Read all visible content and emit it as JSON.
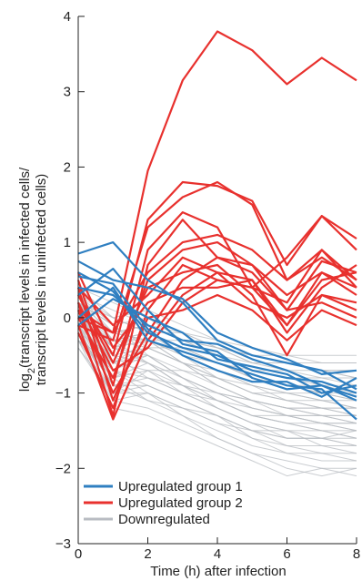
{
  "chart_data": {
    "type": "line",
    "xlabel": "Time (h) after infection",
    "ylabel_lines": [
      "log|2|(transcript levels in infected cells/",
      "transcript levels in uninfected cells)"
    ],
    "xlim": [
      0,
      8
    ],
    "ylim": [
      -3,
      4
    ],
    "x_ticks": [
      "0",
      "2",
      "4",
      "6",
      "8"
    ],
    "y_ticks": [
      "4",
      "3",
      "2",
      "1",
      "0",
      "−1",
      "−2",
      "−3"
    ],
    "x": [
      0,
      1,
      2,
      3,
      4,
      5,
      6,
      7,
      8
    ],
    "grid": false,
    "legend_position": "bottom-left",
    "colors": {
      "upregulated_group_1": "#2f7fc1",
      "upregulated_group_2": "#e8312e",
      "downregulated": "#b8bcc2"
    },
    "legend": [
      {
        "label": "Upregulated group 1",
        "color": "#2f7fc1"
      },
      {
        "label": "Upregulated group 2",
        "color": "#e8312e"
      },
      {
        "label": "Downregulated",
        "color": "#b8bcc2"
      }
    ],
    "series_groups": [
      {
        "group": "Downregulated",
        "color": "#b8bcc2",
        "series": [
          [
            -0.3,
            -0.6,
            -0.4,
            -0.6,
            -0.8,
            -1.0,
            -1.0,
            -1.0,
            -1.1
          ],
          [
            0.3,
            -0.2,
            -0.1,
            -0.3,
            -0.5,
            -0.7,
            -0.8,
            -0.8,
            -0.9
          ],
          [
            0.1,
            -0.4,
            -0.3,
            -0.5,
            -0.7,
            -0.9,
            -1.0,
            -1.1,
            -1.2
          ],
          [
            0.2,
            0.0,
            0.1,
            -0.1,
            -0.3,
            -0.5,
            -0.6,
            -0.7,
            -0.7
          ],
          [
            -0.1,
            -0.7,
            -0.5,
            -0.8,
            -1.0,
            -1.2,
            -1.3,
            -1.3,
            -1.4
          ],
          [
            0.4,
            0.2,
            0.0,
            -0.2,
            -0.4,
            -0.6,
            -0.6,
            -0.7,
            -0.8
          ],
          [
            -0.2,
            -0.9,
            -0.8,
            -1.0,
            -1.2,
            -1.4,
            -1.5,
            -1.5,
            -1.6
          ],
          [
            0.0,
            -0.5,
            -0.6,
            -0.9,
            -1.1,
            -1.3,
            -1.4,
            -1.5,
            -1.5
          ],
          [
            0.2,
            -0.3,
            -0.2,
            -0.4,
            -0.6,
            -0.8,
            -0.9,
            -1.0,
            -1.0
          ],
          [
            -0.3,
            -1.0,
            -1.0,
            -1.2,
            -1.4,
            -1.6,
            -1.7,
            -1.7,
            -1.8
          ],
          [
            0.1,
            -0.2,
            -0.3,
            -0.3,
            -0.4,
            -0.6,
            -0.7,
            -0.7,
            -0.8
          ],
          [
            -0.1,
            -0.6,
            -0.7,
            -0.7,
            -0.9,
            -1.1,
            -1.2,
            -1.2,
            -1.3
          ],
          [
            0.3,
            0.1,
            -0.1,
            -0.3,
            -0.4,
            -0.5,
            -0.5,
            -0.6,
            -0.6
          ],
          [
            -0.2,
            -0.8,
            -1.1,
            -1.3,
            -1.5,
            -1.7,
            -1.8,
            -1.8,
            -1.9
          ],
          [
            0.0,
            -0.4,
            -0.2,
            -0.5,
            -0.8,
            -1.0,
            -1.1,
            -1.2,
            -1.2
          ],
          [
            0.2,
            -0.1,
            -0.4,
            -0.6,
            -0.9,
            -1.1,
            -1.2,
            -1.3,
            -1.4
          ],
          [
            -0.4,
            -1.1,
            -1.2,
            -1.4,
            -1.6,
            -1.8,
            -1.9,
            -2.0,
            -2.0
          ],
          [
            0.1,
            -0.5,
            -0.4,
            -0.4,
            -0.6,
            -0.7,
            -0.8,
            -0.9,
            -0.9
          ],
          [
            -0.1,
            -0.3,
            -0.6,
            -0.8,
            -1.0,
            -1.1,
            -1.3,
            -1.3,
            -1.3
          ],
          [
            0.3,
            -0.1,
            0.0,
            -0.3,
            -0.5,
            -0.7,
            -0.7,
            -0.8,
            -0.8
          ],
          [
            -0.2,
            -0.9,
            -0.9,
            -1.1,
            -1.3,
            -1.5,
            -1.6,
            -1.6,
            -1.7
          ],
          [
            0.0,
            -0.7,
            -0.8,
            -0.9,
            -1.0,
            -1.2,
            -1.3,
            -1.4,
            -1.5
          ],
          [
            0.4,
            0.0,
            -0.2,
            -0.2,
            -0.3,
            -0.4,
            -0.5,
            -0.5,
            -0.5
          ],
          [
            -0.3,
            -1.2,
            -1.3,
            -1.5,
            -1.7,
            -1.9,
            -2.1,
            -2.0,
            -2.1
          ],
          [
            0.1,
            -0.4,
            -0.5,
            -0.7,
            -0.8,
            -0.9,
            -1.0,
            -1.1,
            -1.1
          ],
          [
            -0.1,
            -0.8,
            -0.6,
            -0.9,
            -1.1,
            -1.3,
            -1.3,
            -1.4,
            -1.4
          ],
          [
            0.2,
            -0.2,
            -0.3,
            -0.5,
            -0.6,
            -0.8,
            -0.9,
            -0.9,
            -1.0
          ],
          [
            -0.3,
            -0.7,
            -1.0,
            -1.2,
            -1.3,
            -1.5,
            -1.5,
            -1.6,
            -1.6
          ],
          [
            0.0,
            -0.6,
            -0.3,
            -0.6,
            -0.9,
            -1.1,
            -1.2,
            -1.3,
            -1.3
          ],
          [
            0.2,
            -0.1,
            -0.5,
            -0.8,
            -1.1,
            -1.3,
            -1.4,
            -1.5,
            -1.6
          ],
          [
            -0.2,
            -1.0,
            -0.7,
            -1.0,
            -1.2,
            -1.4,
            -1.5,
            -1.7,
            -1.7
          ],
          [
            0.1,
            -0.3,
            -0.4,
            -0.6,
            -0.7,
            -0.9,
            -1.1,
            -1.1,
            -1.2
          ],
          [
            -0.1,
            -0.9,
            -1.1,
            -1.2,
            -1.4,
            -1.5,
            -1.6,
            -1.6,
            -1.5
          ],
          [
            0.3,
            0.0,
            -0.2,
            -0.4,
            -0.6,
            -0.8,
            -0.9,
            -1.0,
            -1.1
          ],
          [
            -0.4,
            -1.0,
            -0.9,
            -1.1,
            -1.3,
            -1.6,
            -1.8,
            -1.9,
            -1.9
          ],
          [
            0.0,
            -0.2,
            -0.1,
            -0.2,
            -0.4,
            -0.5,
            -0.6,
            -0.7,
            -0.7
          ],
          [
            0.1,
            -0.6,
            -0.5,
            -0.8,
            -1.0,
            -1.1,
            -1.2,
            -1.2,
            -1.3
          ],
          [
            -0.2,
            -0.5,
            -0.8,
            -1.0,
            -1.1,
            -1.3,
            -1.4,
            -1.4,
            -1.5
          ],
          [
            0.2,
            -0.4,
            -0.6,
            -0.9,
            -1.2,
            -1.4,
            -1.6,
            -1.6,
            -1.7
          ],
          [
            -0.1,
            -1.1,
            -1.0,
            -1.3,
            -1.6,
            -1.8,
            -2.0,
            -2.1,
            -2.0
          ],
          [
            0.0,
            -0.3,
            -0.2,
            -0.4,
            -0.5,
            -0.6,
            -0.6,
            -0.6,
            -0.6
          ],
          [
            0.3,
            -0.3,
            -0.3,
            -0.6,
            -0.8,
            -1.0,
            -1.1,
            -1.2,
            -1.2
          ],
          [
            -0.3,
            -0.8,
            -0.7,
            -0.9,
            -1.1,
            -1.2,
            -1.3,
            -1.4,
            -1.4
          ],
          [
            0.1,
            -0.7,
            -0.9,
            -1.1,
            -1.3,
            -1.5,
            -1.7,
            -1.8,
            -1.8
          ]
        ]
      },
      {
        "group": "Upregulated group 2",
        "color": "#e8312e",
        "series": [
          [
            0.1,
            -0.2,
            1.95,
            3.15,
            3.8,
            3.55,
            3.1,
            3.45,
            3.15
          ],
          [
            0.3,
            -0.5,
            1.3,
            1.8,
            1.75,
            1.55,
            0.7,
            1.35,
            1.05
          ],
          [
            -0.1,
            -0.3,
            1.2,
            1.6,
            1.8,
            1.5,
            0.5,
            0.9,
            0.4
          ],
          [
            0.5,
            -0.9,
            0.9,
            1.4,
            1.2,
            0.4,
            0.8,
            1.35,
            0.9
          ],
          [
            0.2,
            -1.3,
            0.7,
            1.3,
            0.8,
            0.7,
            0.1,
            0.75,
            0.6
          ],
          [
            0.0,
            -0.8,
            0.5,
            0.9,
            1.0,
            0.7,
            0.3,
            0.6,
            0.3
          ],
          [
            0.4,
            -0.1,
            0.3,
            0.8,
            0.6,
            0.5,
            -0.1,
            0.5,
            0.6
          ],
          [
            -0.2,
            -1.2,
            0.1,
            0.7,
            0.5,
            0.4,
            0.2,
            0.9,
            0.5
          ],
          [
            0.3,
            -0.6,
            0.4,
            0.6,
            0.7,
            0.3,
            -0.5,
            0.3,
            0.2
          ],
          [
            0.1,
            -1.0,
            -0.2,
            0.5,
            0.8,
            0.6,
            0.1,
            0.2,
            0.0
          ],
          [
            0.6,
            -0.4,
            0.2,
            0.4,
            0.4,
            0.5,
            -0.2,
            0.4,
            0.7
          ],
          [
            -0.1,
            -1.35,
            -0.3,
            0.3,
            0.6,
            0.2,
            0.0,
            0.3,
            0.1
          ],
          [
            0.2,
            -0.7,
            -0.4,
            0.2,
            0.5,
            0.4,
            -0.1,
            0.6,
            0.4
          ],
          [
            0.4,
            -1.1,
            0.0,
            0.1,
            0.3,
            0.1,
            -0.3,
            0.1,
            -0.1
          ],
          [
            0.0,
            -0.2,
            0.6,
            1.0,
            1.1,
            0.9,
            0.5,
            0.8,
            0.5
          ]
        ]
      },
      {
        "group": "Upregulated group 1",
        "color": "#2f7fc1",
        "series": [
          [
            0.85,
            1.0,
            0.5,
            0.2,
            -0.3,
            -0.5,
            -0.6,
            -0.7,
            -0.95
          ],
          [
            0.75,
            0.5,
            0.4,
            0.25,
            -0.2,
            -0.4,
            -0.55,
            -0.75,
            -0.7
          ],
          [
            0.6,
            0.35,
            -0.2,
            -0.4,
            -0.5,
            -0.7,
            -0.8,
            -0.85,
            -1.0
          ],
          [
            0.4,
            0.3,
            -0.1,
            -0.3,
            -0.35,
            -0.55,
            -0.7,
            -0.9,
            -1.1
          ],
          [
            0.0,
            0.4,
            -0.3,
            -0.45,
            -0.6,
            -0.75,
            -0.9,
            -0.95,
            -1.35
          ],
          [
            -0.1,
            0.25,
            0.0,
            -0.2,
            -0.55,
            -0.65,
            -0.75,
            -1.0,
            -0.9
          ],
          [
            0.3,
            0.65,
            0.1,
            -0.35,
            -0.45,
            -0.8,
            -0.95,
            -0.9,
            -1.05
          ],
          [
            0.55,
            0.45,
            -0.15,
            -0.5,
            -0.7,
            -0.85,
            -0.85,
            -1.05,
            -0.8
          ]
        ]
      }
    ]
  }
}
